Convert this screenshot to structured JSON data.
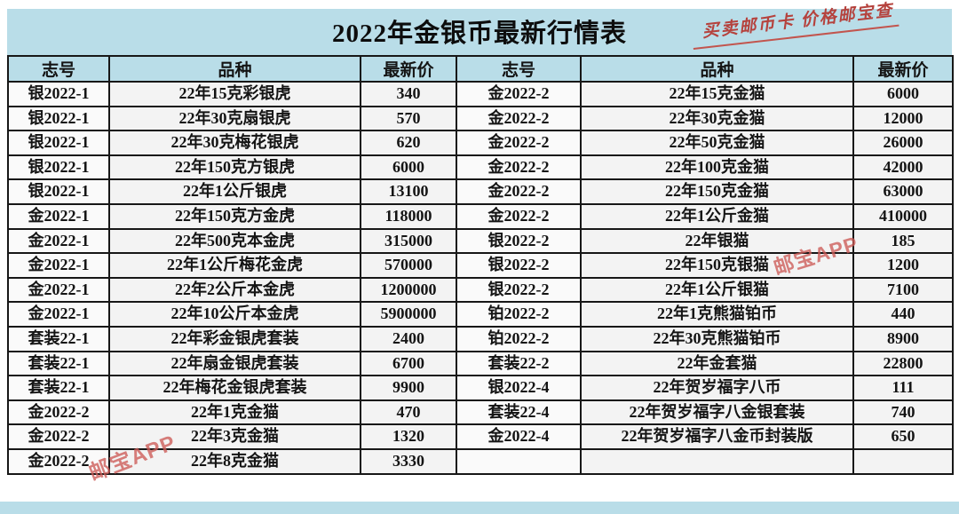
{
  "page": {
    "title": "2022年金银币最新行情表",
    "annotation": "买卖邮币卡 价格邮宝查",
    "watermark": "邮宝APP",
    "colors": {
      "band_blue": "#b9dde8",
      "annotation_red": "#b5423d",
      "watermark_red": "#cc5a56",
      "cell_bg": "#f3f3f3",
      "border_black": "#171717"
    }
  },
  "table": {
    "headers": [
      "志号",
      "品种",
      "最新价",
      "志号",
      "品种",
      "最新价"
    ],
    "rows_left": [
      {
        "code": "银2022-1",
        "item": "22年15克彩银虎",
        "price": "340"
      },
      {
        "code": "银2022-1",
        "item": "22年30克扇银虎",
        "price": "570"
      },
      {
        "code": "银2022-1",
        "item": "22年30克梅花银虎",
        "price": "620"
      },
      {
        "code": "银2022-1",
        "item": "22年150克方银虎",
        "price": "6000"
      },
      {
        "code": "银2022-1",
        "item": "22年1公斤银虎",
        "price": "13100"
      },
      {
        "code": "金2022-1",
        "item": "22年150克方金虎",
        "price": "118000"
      },
      {
        "code": "金2022-1",
        "item": "22年500克本金虎",
        "price": "315000"
      },
      {
        "code": "金2022-1",
        "item": "22年1公斤梅花金虎",
        "price": "570000"
      },
      {
        "code": "金2022-1",
        "item": "22年2公斤本金虎",
        "price": "1200000"
      },
      {
        "code": "金2022-1",
        "item": "22年10公斤本金虎",
        "price": "5900000"
      },
      {
        "code": "套装22-1",
        "item": "22年彩金银虎套装",
        "price": "2400"
      },
      {
        "code": "套装22-1",
        "item": "22年扇金银虎套装",
        "price": "6700"
      },
      {
        "code": "套装22-1",
        "item": "22年梅花金银虎套装",
        "price": "9900"
      },
      {
        "code": "金2022-2",
        "item": "22年1克金猫",
        "price": "470"
      },
      {
        "code": "金2022-2",
        "item": "22年3克金猫",
        "price": "1320"
      },
      {
        "code": "金2022-2",
        "item": "22年8克金猫",
        "price": "3330"
      }
    ],
    "rows_right": [
      {
        "code": "金2022-2",
        "item": "22年15克金猫",
        "price": "6000"
      },
      {
        "code": "金2022-2",
        "item": "22年30克金猫",
        "price": "12000"
      },
      {
        "code": "金2022-2",
        "item": "22年50克金猫",
        "price": "26000"
      },
      {
        "code": "金2022-2",
        "item": "22年100克金猫",
        "price": "42000"
      },
      {
        "code": "金2022-2",
        "item": "22年150克金猫",
        "price": "63000"
      },
      {
        "code": "金2022-2",
        "item": "22年1公斤金猫",
        "price": "410000"
      },
      {
        "code": "银2022-2",
        "item": "22年银猫",
        "price": "185"
      },
      {
        "code": "银2022-2",
        "item": "22年150克银猫",
        "price": "1200"
      },
      {
        "code": "银2022-2",
        "item": "22年1公斤银猫",
        "price": "7100"
      },
      {
        "code": "铂2022-2",
        "item": "22年1克熊猫铂币",
        "price": "440"
      },
      {
        "code": "铂2022-2",
        "item": "22年30克熊猫铂币",
        "price": "8900"
      },
      {
        "code": "套装22-2",
        "item": "22年金套猫",
        "price": "22800"
      },
      {
        "code": "银2022-4",
        "item": "22年贺岁福字八币",
        "price": "111"
      },
      {
        "code": "套装22-4",
        "item": "22年贺岁福字八金银套装",
        "price": "740"
      },
      {
        "code": "金2022-4",
        "item": "22年贺岁福字八金币封装版",
        "price": "650"
      },
      {
        "code": "",
        "item": "",
        "price": ""
      }
    ]
  }
}
